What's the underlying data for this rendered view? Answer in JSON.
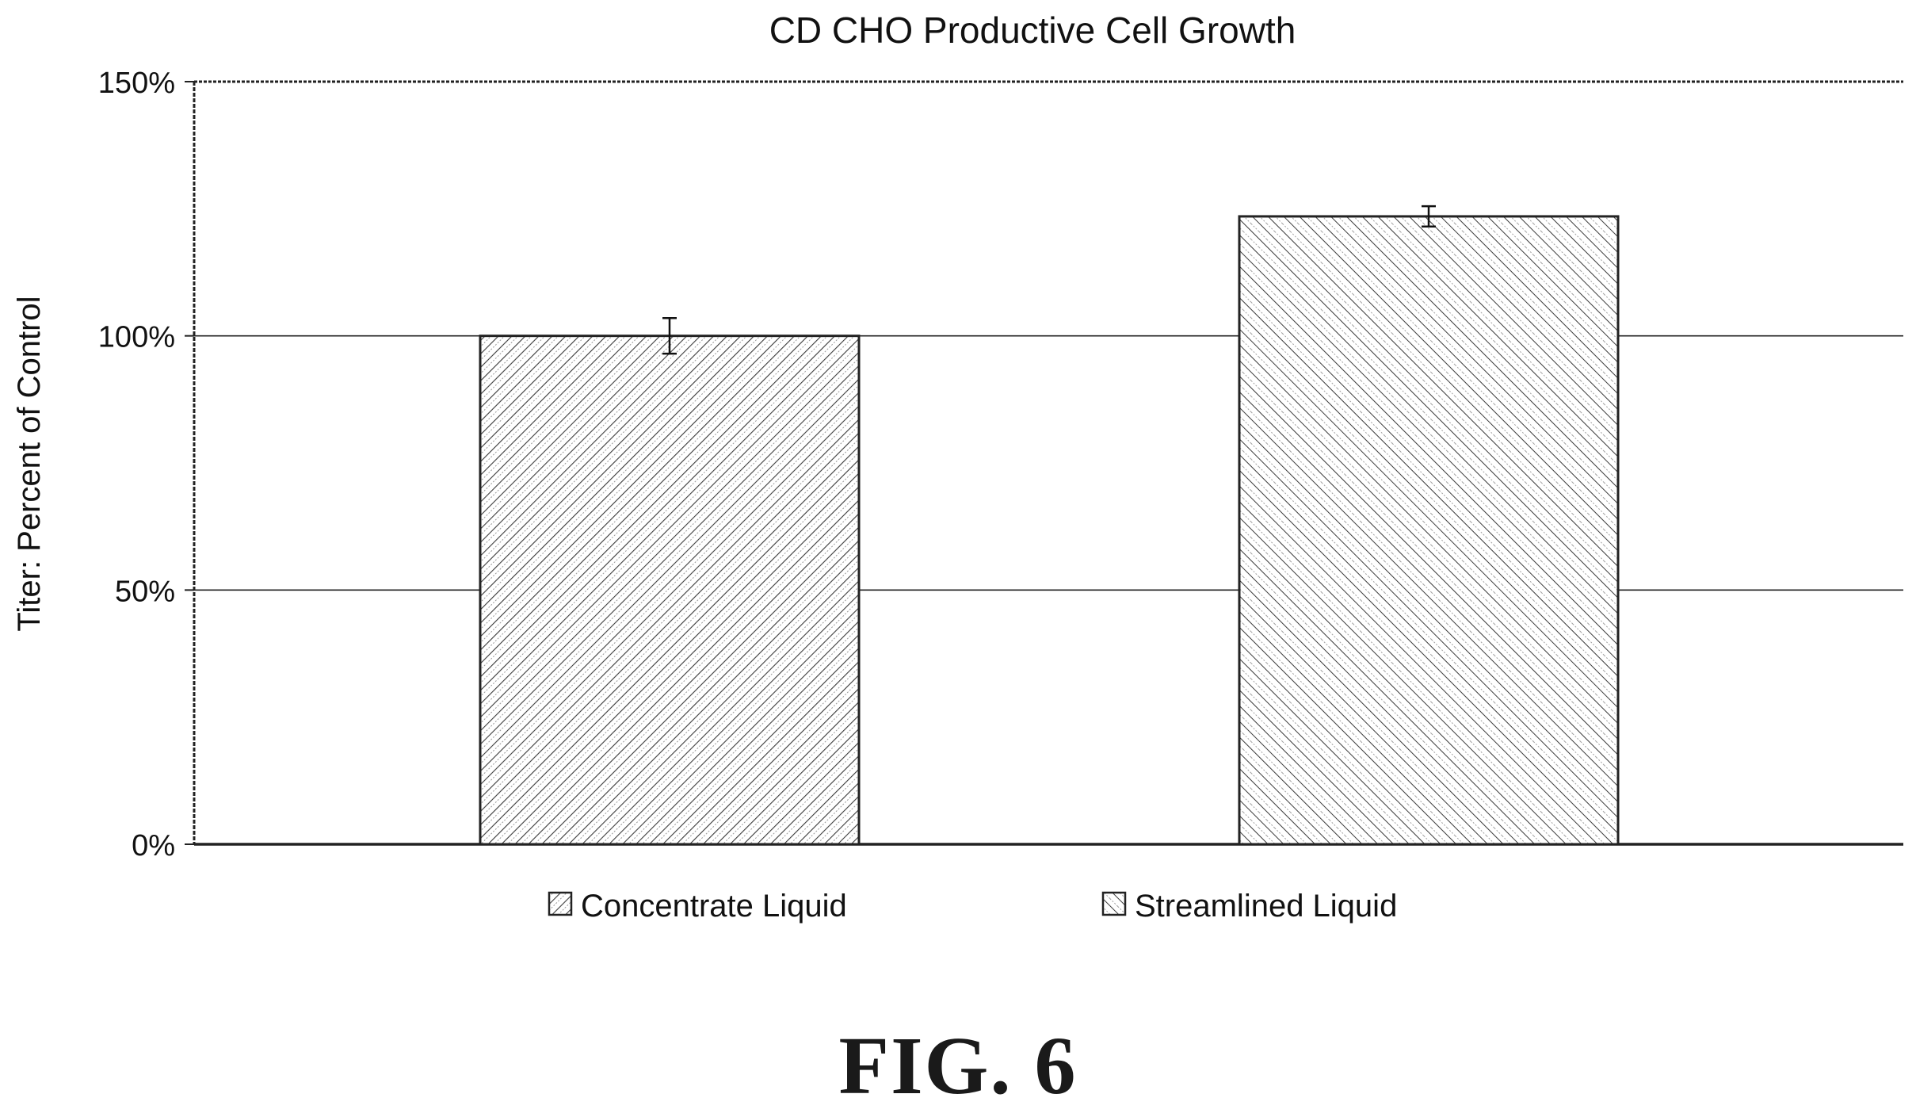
{
  "figure_label": "FIG. 6",
  "chart_data": {
    "type": "bar",
    "title": "CD CHO Productive Cell Growth",
    "xlabel": "",
    "ylabel": "Titer: Percent of Control",
    "categories": [
      "Concentrate Liquid",
      "Streamlined Liquid"
    ],
    "values": [
      100,
      123.5
    ],
    "error": [
      3.5,
      2
    ],
    "ylim": [
      0,
      150
    ],
    "yticks": [
      0,
      50,
      100,
      150
    ],
    "ytick_labels": [
      "0%",
      "50%",
      "100%",
      "150%"
    ],
    "grid": true,
    "legend": {
      "placement": "bottom",
      "entries": [
        "Concentrate Liquid",
        "Streamlined Liquid"
      ]
    },
    "colors": {
      "bar_stroke": "#222222",
      "hatch": "#444444",
      "grid": "#222222",
      "text": "#111111"
    }
  }
}
